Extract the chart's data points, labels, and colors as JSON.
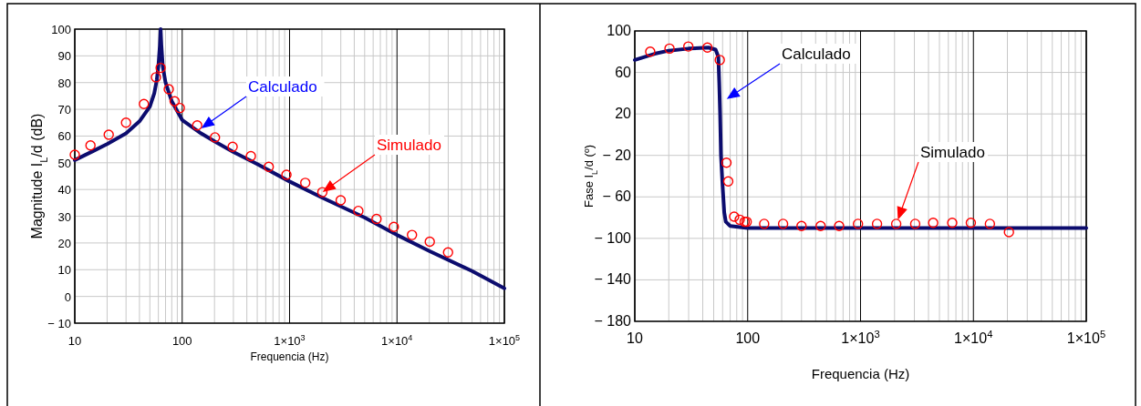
{
  "chart_data": [
    {
      "type": "line",
      "xlabel": "Frequencia (Hz)",
      "ylabel": "Magnitude I$_{L}$/d (dB)",
      "log": "x",
      "grid": true,
      "xlim": [
        10,
        100000
      ],
      "ylim": [
        -10,
        100
      ],
      "xticks": [
        {
          "value": 10,
          "label": "10"
        },
        {
          "value": 100,
          "label": "100"
        },
        {
          "value": 1000,
          "label": "1×10$^{3}$"
        },
        {
          "value": 10000,
          "label": "1×10$^{4}$"
        },
        {
          "value": 100000,
          "label": "1×10$^{5}$"
        }
      ],
      "yticks": [
        -10,
        0,
        10,
        20,
        30,
        40,
        50,
        60,
        70,
        80,
        90,
        100
      ],
      "series": [
        {
          "color": "#0c0c6e",
          "marker": "none",
          "x": [
            10,
            15,
            20,
            30,
            40,
            50,
            55,
            58,
            60,
            62,
            63,
            64,
            66,
            70,
            80,
            100,
            150,
            200,
            300,
            500,
            1000,
            2000,
            5000,
            10000,
            20000,
            50000,
            100000
          ],
          "values": [
            51,
            54.5,
            57,
            61,
            65.5,
            71,
            76,
            81,
            86,
            94,
            100,
            94,
            86,
            80,
            73,
            66,
            61,
            58,
            54,
            49.5,
            43,
            37,
            29.5,
            23,
            17,
            9.5,
            3
          ]
        },
        {
          "type": "scatter",
          "color": "#ff0000",
          "marker": "circle",
          "x": [
            10,
            14,
            20.7,
            30,
            44,
            57,
            63,
            75,
            85,
            95,
            138,
            202,
            295,
            436,
            640,
            935,
            1400,
            2020,
            2990,
            4370,
            6450,
            9350,
            13800,
            20200,
            29900
          ],
          "values": [
            53,
            56.5,
            60.5,
            65,
            72,
            82,
            85.5,
            77.5,
            73,
            70.5,
            64,
            59.5,
            56,
            52.5,
            48.5,
            45.5,
            42.5,
            39,
            36,
            32,
            29,
            26,
            23,
            20.5,
            16.5
          ]
        }
      ],
      "annotations": [
        "Calculado",
        "Simulado"
      ]
    },
    {
      "type": "line",
      "xlabel": "Frequencia (Hz)",
      "ylabel": "Fase I$_{L}$/d (º)",
      "log": "x",
      "grid": true,
      "xlim": [
        10,
        100000
      ],
      "ylim": [
        -180,
        100
      ],
      "xticks": [
        {
          "value": 10,
          "label": "10"
        },
        {
          "value": 100,
          "label": "100"
        },
        {
          "value": 1000,
          "label": "1×10$^{3}$"
        },
        {
          "value": 10000,
          "label": "1×10$^{4}$"
        },
        {
          "value": 100000,
          "label": "1×10$^{5}$"
        }
      ],
      "yticks": [
        -180,
        -140,
        -100,
        -60,
        -20,
        20,
        60,
        100
      ],
      "series": [
        {
          "color": "#0c0c6e",
          "marker": "none",
          "x": [
            10,
            15,
            20,
            30,
            45,
            52,
            55,
            56,
            57,
            58,
            60,
            62,
            64,
            70,
            100,
            1000,
            100000
          ],
          "values": [
            72,
            78,
            81,
            83,
            84,
            82,
            75,
            50,
            20,
            -20,
            -50,
            -75,
            -84,
            -88,
            -90,
            -90,
            -90
          ]
        },
        {
          "type": "scatter",
          "color": "#ff0000",
          "marker": "circle",
          "x": [
            13.7,
            20.3,
            29.8,
            44,
            56.6,
            64.9,
            67.3,
            75.9,
            85,
            94,
            98,
            140,
            206,
            300,
            443,
            646,
            949,
            1400,
            2070,
            3050,
            4400,
            6490,
            9490,
            14000,
            20650
          ],
          "values": [
            80,
            83,
            85,
            84,
            72,
            -27,
            -45,
            -79,
            -82,
            -84,
            -84,
            -86,
            -86,
            -88,
            -88,
            -88,
            -86,
            -86,
            -86,
            -86,
            -85,
            -85,
            -85,
            -86,
            -94
          ]
        }
      ],
      "annotations": [
        "Calculado",
        "Simulado"
      ]
    }
  ]
}
